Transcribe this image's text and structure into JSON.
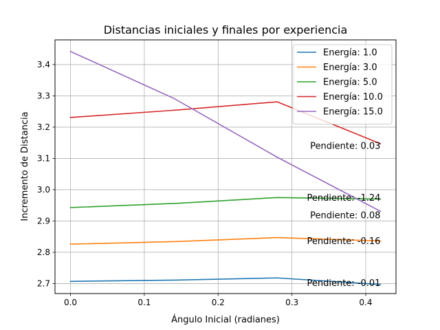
{
  "chart_data": {
    "type": "line",
    "title": "Distancias iniciales y finales por experiencia",
    "xlabel": "Ángulo Inicial (radianes)",
    "ylabel": "Incremento de Distancia",
    "xlim": [
      -0.021,
      0.441
    ],
    "ylim": [
      2.668,
      3.479
    ],
    "xticks": [
      0.0,
      0.1,
      0.2,
      0.3,
      0.4
    ],
    "xtick_labels": [
      "0.0",
      "0.1",
      "0.2",
      "0.3",
      "0.4"
    ],
    "yticks": [
      2.7,
      2.8,
      2.9,
      3.0,
      3.1,
      3.2,
      3.3,
      3.4
    ],
    "ytick_labels": [
      "2.7",
      "2.8",
      "2.9",
      "3.0",
      "3.1",
      "3.2",
      "3.3",
      "3.4"
    ],
    "grid": true,
    "legend_position": "top-right",
    "series": [
      {
        "name": "Energía: 1.0",
        "color": "#1f77b4",
        "x": [
          0.0,
          0.14,
          0.28,
          0.42
        ],
        "y": [
          2.707,
          2.711,
          2.718,
          2.697
        ]
      },
      {
        "name": "Energía: 3.0",
        "color": "#ff7f0e",
        "x": [
          0.0,
          0.14,
          0.28,
          0.42
        ],
        "y": [
          2.826,
          2.834,
          2.847,
          2.836
        ]
      },
      {
        "name": "Energía: 5.0",
        "color": "#2ca02c",
        "x": [
          0.0,
          0.14,
          0.28,
          0.42
        ],
        "y": [
          2.943,
          2.956,
          2.975,
          2.97
        ]
      },
      {
        "name": "Energía: 10.0",
        "color": "#d62728",
        "x": [
          0.0,
          0.14,
          0.28,
          0.42
        ],
        "y": [
          3.231,
          3.254,
          3.281,
          3.147
        ]
      },
      {
        "name": "Energía: 15.0",
        "color": "#9467bd",
        "x": [
          0.0,
          0.14,
          0.28,
          0.42
        ],
        "y": [
          3.442,
          3.292,
          3.104,
          2.931
        ]
      }
    ],
    "annotations": [
      {
        "text": "Pendiente: 0.03",
        "x": 0.42,
        "y": 3.14
      },
      {
        "text": "Pendiente: -1.24",
        "x": 0.42,
        "y": 2.975
      },
      {
        "text": "Pendiente: 0.08",
        "x": 0.42,
        "y": 2.919
      },
      {
        "text": "Pendiente: -0.16",
        "x": 0.42,
        "y": 2.836
      },
      {
        "text": "Pendiente: -0.01",
        "x": 0.42,
        "y": 2.702
      }
    ]
  }
}
